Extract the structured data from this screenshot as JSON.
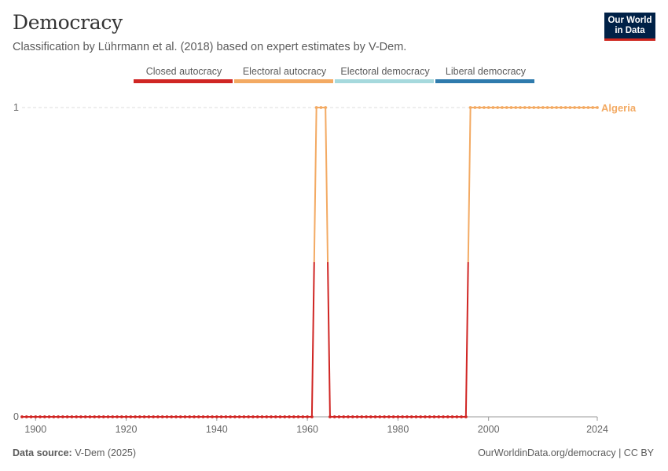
{
  "header": {
    "title": "Democracy",
    "subtitle": "Classification by Lührmann et al. (2018) based on expert estimates by V-Dem."
  },
  "logo": {
    "line1": "Our World",
    "line2": "in Data"
  },
  "legend": [
    {
      "label": "Closed autocracy",
      "color": "#d02624"
    },
    {
      "label": "Electoral autocracy",
      "color": "#f3aa63"
    },
    {
      "label": "Electoral democracy",
      "color": "#a6d9dd"
    },
    {
      "label": "Liberal democracy",
      "color": "#2f7bad"
    }
  ],
  "footer": {
    "source_label": "Data source:",
    "source_value": "V-Dem (2025)",
    "url": "OurWorldinData.org/democracy | CC BY"
  },
  "chart_data": {
    "type": "line",
    "x_ticks": [
      1900,
      1920,
      1940,
      1960,
      1980,
      2000,
      2024
    ],
    "y_ticks": [
      0,
      1
    ],
    "xlim": [
      1897,
      2024
    ],
    "ylim": [
      0,
      1
    ],
    "grid": "horizontal dashed",
    "series": [
      {
        "name": "Algeria",
        "color_high": "#f3aa63",
        "color_low": "#d02624",
        "start_year": 1897,
        "end_year": 2024,
        "values_by_year": {
          "1897-1961": 0,
          "1962-1964": 1,
          "1965-1995": 0,
          "1996-2024": 1
        }
      }
    ]
  }
}
